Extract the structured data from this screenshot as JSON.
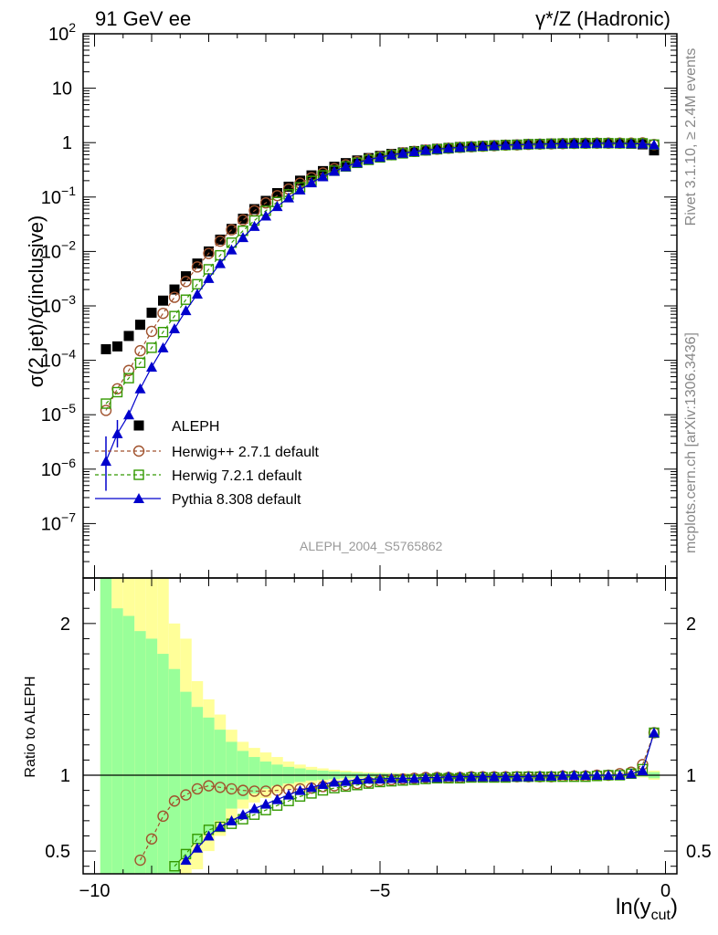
{
  "header": {
    "left": "91 GeV ee",
    "right": "γ*/Z (Hadronic)"
  },
  "side_text": {
    "rivet": "Rivet 3.1.10, ≥ 2.4M events",
    "mcplots": "mcplots.cern.ch [arXiv:1306.3436]"
  },
  "analysis_tag": "ALEPH_2004_S5765862",
  "axes": {
    "main_ylabel": "σ(2 jet)/σ(inclusive)",
    "ratio_ylabel": "Ratio to ALEPH",
    "xlabel_main": "ln(y",
    "xlabel_sub": "cut",
    "xlabel_close": ")"
  },
  "colors": {
    "aleph": "#000000",
    "herwigpp": "#a0522d",
    "herwig7": "#339900",
    "pythia": "#0000cc",
    "band_inner": "#99ff99",
    "band_outer": "#ffff99"
  },
  "chart_data": [
    {
      "type": "scatter",
      "panel": "main",
      "yscale": "log",
      "xlim": [
        -10.2,
        0.2
      ],
      "ylim": [
        1e-08,
        100
      ],
      "yticks": [
        "10^-7",
        "10^-6",
        "10^-5",
        "10^-4",
        "10^-3",
        "10^-2",
        "10^-1",
        "1",
        "10",
        "10^2"
      ],
      "xticks": [
        "−10",
        "−5",
        "0"
      ],
      "legend_position": "lower-left",
      "x": [
        -9.8,
        -9.6,
        -9.4,
        -9.2,
        -9.0,
        -8.8,
        -8.6,
        -8.4,
        -8.2,
        -8.0,
        -7.8,
        -7.6,
        -7.4,
        -7.2,
        -7.0,
        -6.8,
        -6.6,
        -6.4,
        -6.2,
        -6.0,
        -5.8,
        -5.6,
        -5.4,
        -5.2,
        -5.0,
        -4.8,
        -4.6,
        -4.4,
        -4.2,
        -4.0,
        -3.8,
        -3.6,
        -3.4,
        -3.2,
        -3.0,
        -2.8,
        -2.6,
        -2.4,
        -2.2,
        -2.0,
        -1.8,
        -1.6,
        -1.4,
        -1.2,
        -1.0,
        -0.8,
        -0.6,
        -0.4,
        -0.2
      ],
      "series": [
        {
          "name": "ALEPH",
          "marker": "square-filled",
          "values": [
            0.00016,
            0.00018,
            0.00028,
            0.00045,
            0.00075,
            0.00125,
            0.002,
            0.0035,
            0.006,
            0.01,
            0.0165,
            0.026,
            0.04,
            0.06,
            0.085,
            0.118,
            0.155,
            0.2,
            0.25,
            0.3,
            0.36,
            0.42,
            0.47,
            0.52,
            0.57,
            0.62,
            0.66,
            0.7,
            0.74,
            0.77,
            0.8,
            0.83,
            0.85,
            0.87,
            0.89,
            0.91,
            0.92,
            0.94,
            0.95,
            0.96,
            0.97,
            0.975,
            0.98,
            0.98,
            0.975,
            0.97,
            0.955,
            0.93,
            0.72
          ]
        },
        {
          "name": "Herwig++ 2.7.1 default",
          "marker": "circle-open",
          "values": [
            1.2e-05,
            3e-05,
            6.5e-05,
            0.00015,
            0.00034,
            0.00073,
            0.00144,
            0.0028,
            0.0052,
            0.0092,
            0.0155,
            0.025,
            0.038,
            0.056,
            0.078,
            0.106,
            0.14,
            0.18,
            0.226,
            0.277,
            0.333,
            0.39,
            0.446,
            0.5,
            0.55,
            0.6,
            0.65,
            0.69,
            0.73,
            0.76,
            0.79,
            0.82,
            0.84,
            0.86,
            0.88,
            0.9,
            0.91,
            0.93,
            0.94,
            0.95,
            0.96,
            0.97,
            0.975,
            0.98,
            0.98,
            0.98,
            0.98,
            0.99,
            0.92
          ]
        },
        {
          "name": "Herwig 7.2.1 default",
          "marker": "square-open",
          "values": [
            1.6e-05,
            2.6e-05,
            4.7e-05,
            9e-05,
            0.00017,
            0.00033,
            0.00065,
            0.0013,
            0.0025,
            0.0047,
            0.0085,
            0.0145,
            0.024,
            0.037,
            0.056,
            0.081,
            0.112,
            0.151,
            0.198,
            0.25,
            0.305,
            0.365,
            0.425,
            0.482,
            0.535,
            0.59,
            0.635,
            0.68,
            0.72,
            0.755,
            0.785,
            0.815,
            0.84,
            0.86,
            0.88,
            0.9,
            0.91,
            0.93,
            0.94,
            0.95,
            0.96,
            0.965,
            0.97,
            0.975,
            0.975,
            0.97,
            0.965,
            0.97,
            0.92
          ]
        },
        {
          "name": "Pythia 8.308 default",
          "marker": "triangle-filled",
          "values": [
            1.4e-06,
            4.5e-06,
            1e-05,
            3e-05,
            7.5e-05,
            0.00017,
            0.00038,
            0.00082,
            0.00165,
            0.0032,
            0.006,
            0.0107,
            0.018,
            0.029,
            0.045,
            0.067,
            0.097,
            0.135,
            0.183,
            0.237,
            0.298,
            0.362,
            0.426,
            0.49,
            0.54,
            0.595,
            0.64,
            0.685,
            0.725,
            0.76,
            0.79,
            0.82,
            0.845,
            0.865,
            0.885,
            0.9,
            0.915,
            0.93,
            0.94,
            0.95,
            0.96,
            0.965,
            0.97,
            0.975,
            0.975,
            0.97,
            0.96,
            0.95,
            0.91
          ]
        }
      ]
    },
    {
      "type": "line",
      "panel": "ratio",
      "ylim": [
        0.35,
        2.3
      ],
      "yticks": [
        "0.5",
        "1",
        "2"
      ],
      "reference_line": 1,
      "x": [
        -9.8,
        -9.6,
        -9.4,
        -9.2,
        -9.0,
        -8.8,
        -8.6,
        -8.4,
        -8.2,
        -8.0,
        -7.8,
        -7.6,
        -7.4,
        -7.2,
        -7.0,
        -6.8,
        -6.6,
        -6.4,
        -6.2,
        -6.0,
        -5.8,
        -5.6,
        -5.4,
        -5.2,
        -5.0,
        -4.8,
        -4.6,
        -4.4,
        -4.2,
        -4.0,
        -3.8,
        -3.6,
        -3.4,
        -3.2,
        -3.0,
        -2.8,
        -2.6,
        -2.4,
        -2.2,
        -2.0,
        -1.8,
        -1.6,
        -1.4,
        -1.2,
        -1.0,
        -0.8,
        -0.6,
        -0.4,
        -0.2
      ],
      "bands": {
        "inner_halfwidth": [
          1.3,
          1.1,
          1.05,
          0.95,
          0.9,
          0.8,
          0.7,
          0.55,
          0.45,
          0.38,
          0.3,
          0.22,
          0.16,
          0.12,
          0.09,
          0.07,
          0.055,
          0.045,
          0.035,
          0.03,
          0.025,
          0.02,
          0.016,
          0.013,
          0.011,
          0.01,
          0.009,
          0.008,
          0.007,
          0.007,
          0.006,
          0.006,
          0.006,
          0.005,
          0.005,
          0.005,
          0.005,
          0.005,
          0.005,
          0.005,
          0.005,
          0.005,
          0.005,
          0.005,
          0.005,
          0.006,
          0.007,
          0.01,
          0.02
        ],
        "outer_halfwidth": [
          1.4,
          1.35,
          1.35,
          1.35,
          1.35,
          1.3,
          1.0,
          0.9,
          0.62,
          0.5,
          0.4,
          0.3,
          0.22,
          0.18,
          0.15,
          0.12,
          0.09,
          0.07,
          0.055,
          0.045,
          0.036,
          0.03,
          0.024,
          0.02,
          0.017,
          0.015,
          0.013,
          0.012,
          0.011,
          0.01,
          0.009,
          0.009,
          0.008,
          0.008,
          0.008,
          0.007,
          0.007,
          0.007,
          0.007,
          0.007,
          0.007,
          0.007,
          0.007,
          0.007,
          0.007,
          0.008,
          0.01,
          0.015,
          0.03
        ]
      },
      "series": [
        {
          "name": "Herwig++ 2.7.1 default",
          "values": [
            null,
            null,
            null,
            0.44,
            0.58,
            0.73,
            0.83,
            0.87,
            0.91,
            0.93,
            0.92,
            0.91,
            0.9,
            0.895,
            0.895,
            0.9,
            0.905,
            0.91,
            0.915,
            0.925,
            0.93,
            0.935,
            0.945,
            0.955,
            0.965,
            0.97,
            0.975,
            0.98,
            0.985,
            0.985,
            0.985,
            0.985,
            0.99,
            0.99,
            0.99,
            0.99,
            0.99,
            0.99,
            0.99,
            0.99,
            0.995,
            0.995,
            0.995,
            1.0,
            1.0,
            1.01,
            1.02,
            1.07,
            1.28
          ]
        },
        {
          "name": "Herwig 7.2.1 default",
          "values": [
            null,
            null,
            null,
            null,
            null,
            null,
            0.4,
            0.48,
            0.58,
            0.64,
            0.66,
            0.68,
            0.71,
            0.74,
            0.77,
            0.8,
            0.83,
            0.86,
            0.88,
            0.9,
            0.915,
            0.925,
            0.935,
            0.945,
            0.955,
            0.96,
            0.965,
            0.97,
            0.975,
            0.98,
            0.98,
            0.98,
            0.985,
            0.985,
            0.985,
            0.985,
            0.99,
            0.99,
            0.99,
            0.99,
            0.99,
            0.99,
            0.99,
            0.995,
            1.0,
            1.0,
            1.01,
            1.04,
            1.28
          ]
        },
        {
          "name": "Pythia 8.308 default",
          "values": [
            null,
            null,
            null,
            null,
            null,
            null,
            null,
            0.44,
            0.52,
            0.6,
            0.66,
            0.7,
            0.74,
            0.78,
            0.81,
            0.84,
            0.87,
            0.9,
            0.92,
            0.94,
            0.955,
            0.96,
            0.97,
            0.975,
            0.975,
            0.98,
            0.98,
            0.98,
            0.985,
            0.985,
            0.99,
            0.99,
            0.99,
            0.99,
            0.99,
            0.99,
            0.99,
            0.99,
            0.995,
            0.995,
            1.0,
            1.0,
            1.0,
            1.0,
            1.0,
            1.0,
            1.01,
            1.03,
            1.28
          ]
        }
      ]
    }
  ]
}
